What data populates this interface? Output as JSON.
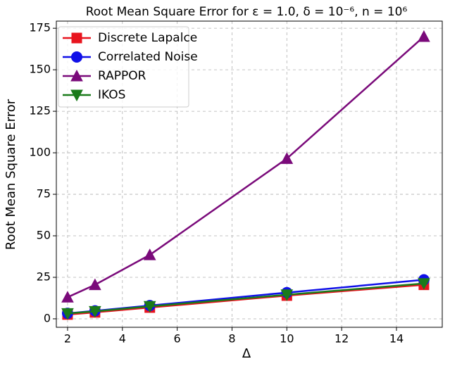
{
  "chart_data": {
    "type": "line",
    "title": "Root Mean Square Error for ε = 1.0, δ = 10⁻⁶, n = 10⁶",
    "x_label": "Δ",
    "y_label": "Root Mean Square Error",
    "x": [
      2,
      3,
      5,
      10,
      15
    ],
    "series": [
      {
        "name": "Discrete Lapalce",
        "color": "#e8141e",
        "marker": "square",
        "values": [
          2.6,
          3.9,
          6.8,
          14,
          20.5
        ]
      },
      {
        "name": "Correlated Noise",
        "color": "#1010e8",
        "marker": "circle",
        "values": [
          3.3,
          4.8,
          8,
          15.8,
          23.5
        ]
      },
      {
        "name": "RAPPOR",
        "color": "#7a0a7a",
        "marker": "triangle-up",
        "values": [
          13,
          20.5,
          38.5,
          96.5,
          170
        ]
      },
      {
        "name": "IKOS",
        "color": "#1a7a1a",
        "marker": "triangle-down",
        "values": [
          3.2,
          4.5,
          7.5,
          14.5,
          21.3
        ]
      }
    ],
    "xlim": [
      1.59,
      15.67
    ],
    "ylim": [
      -5.1,
      179.3
    ],
    "xticks": [
      2,
      4,
      6,
      8,
      10,
      12,
      14
    ],
    "yticks": [
      0,
      25,
      50,
      75,
      100,
      125,
      150,
      175
    ],
    "grid": true,
    "legend": "upper-left"
  }
}
